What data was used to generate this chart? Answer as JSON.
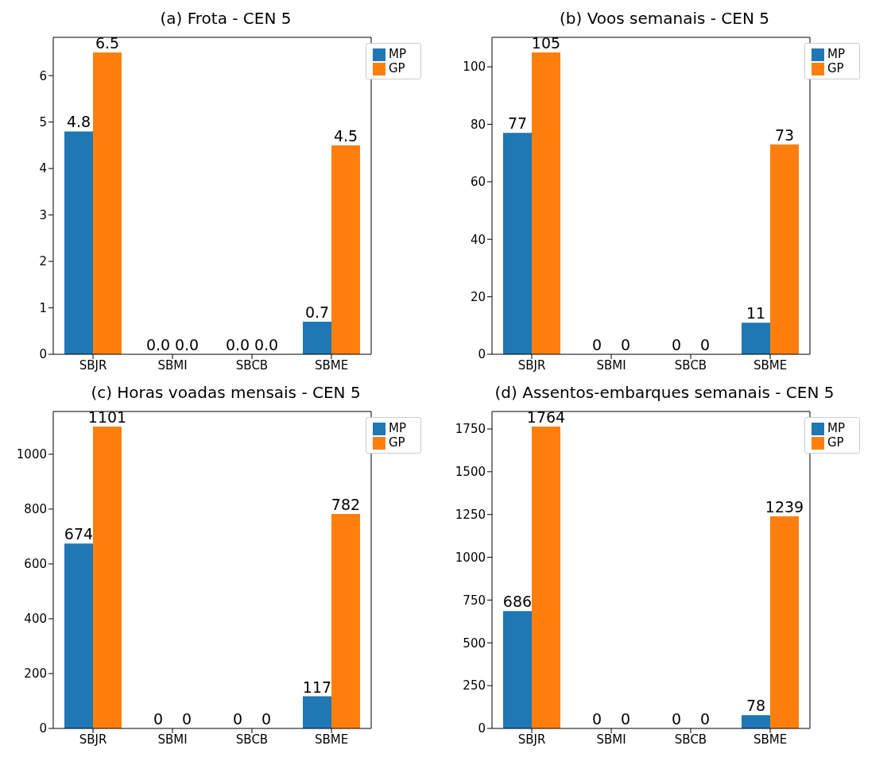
{
  "chart_data": [
    {
      "type": "bar",
      "title": "(a) Frota - CEN 5",
      "categories": [
        "SBJR",
        "SBMI",
        "SBCB",
        "SBME"
      ],
      "series": [
        {
          "name": "MP",
          "color": "#1f77b4",
          "values": [
            4.8,
            0,
            0,
            0.7
          ],
          "value_labels": [
            "4.8",
            "0.0",
            "0.0",
            "0.7"
          ]
        },
        {
          "name": "GP",
          "color": "#ff7f0e",
          "values": [
            6.5,
            0,
            0,
            4.5
          ],
          "value_labels": [
            "6.5",
            "0.0",
            "0.0",
            "4.5"
          ]
        }
      ],
      "ylim": [
        0,
        6.825
      ],
      "yticks": [
        0,
        1,
        2,
        3,
        4,
        5,
        6
      ],
      "grid": false,
      "legend": "top right"
    },
    {
      "type": "bar",
      "title": "(b) Voos semanais - CEN 5",
      "categories": [
        "SBJR",
        "SBMI",
        "SBCB",
        "SBME"
      ],
      "series": [
        {
          "name": "MP",
          "color": "#1f77b4",
          "values": [
            77,
            0,
            0,
            11
          ]
        },
        {
          "name": "GP",
          "color": "#ff7f0e",
          "values": [
            105,
            0,
            0,
            73
          ]
        }
      ],
      "ylim": [
        0,
        110.25
      ],
      "yticks": [
        0,
        20,
        40,
        60,
        80,
        100
      ],
      "grid": false,
      "legend": "top right",
      "data_labels": true
    },
    {
      "type": "bar",
      "title": "(c) Horas voadas mensais - CEN 5",
      "categories": [
        "SBJR",
        "SBMI",
        "SBCB",
        "SBME"
      ],
      "series": [
        {
          "name": "MP",
          "color": "#1f77b4",
          "values": [
            674,
            0,
            0,
            117
          ]
        },
        {
          "name": "GP",
          "color": "#ff7f0e",
          "values": [
            1101,
            0,
            0,
            782
          ]
        }
      ],
      "ylim": [
        0,
        1156
      ],
      "yticks": [
        0,
        200,
        400,
        600,
        800,
        1000
      ],
      "grid": false,
      "legend": "top right",
      "data_labels": true
    },
    {
      "type": "bar",
      "title": "(d) Assentos-embarques semanais - CEN 5",
      "categories": [
        "SBJR",
        "SBMI",
        "SBCB",
        "SBME"
      ],
      "series": [
        {
          "name": "MP",
          "color": "#1f77b4",
          "values": [
            686,
            0,
            0,
            78
          ]
        },
        {
          "name": "GP",
          "color": "#ff7f0e",
          "values": [
            1764,
            0,
            0,
            1239
          ]
        }
      ],
      "ylim": [
        0,
        1852
      ],
      "yticks": [
        0,
        250,
        500,
        750,
        1000,
        1250,
        1500,
        1750
      ],
      "grid": false,
      "legend": "top right",
      "data_labels": true
    }
  ]
}
